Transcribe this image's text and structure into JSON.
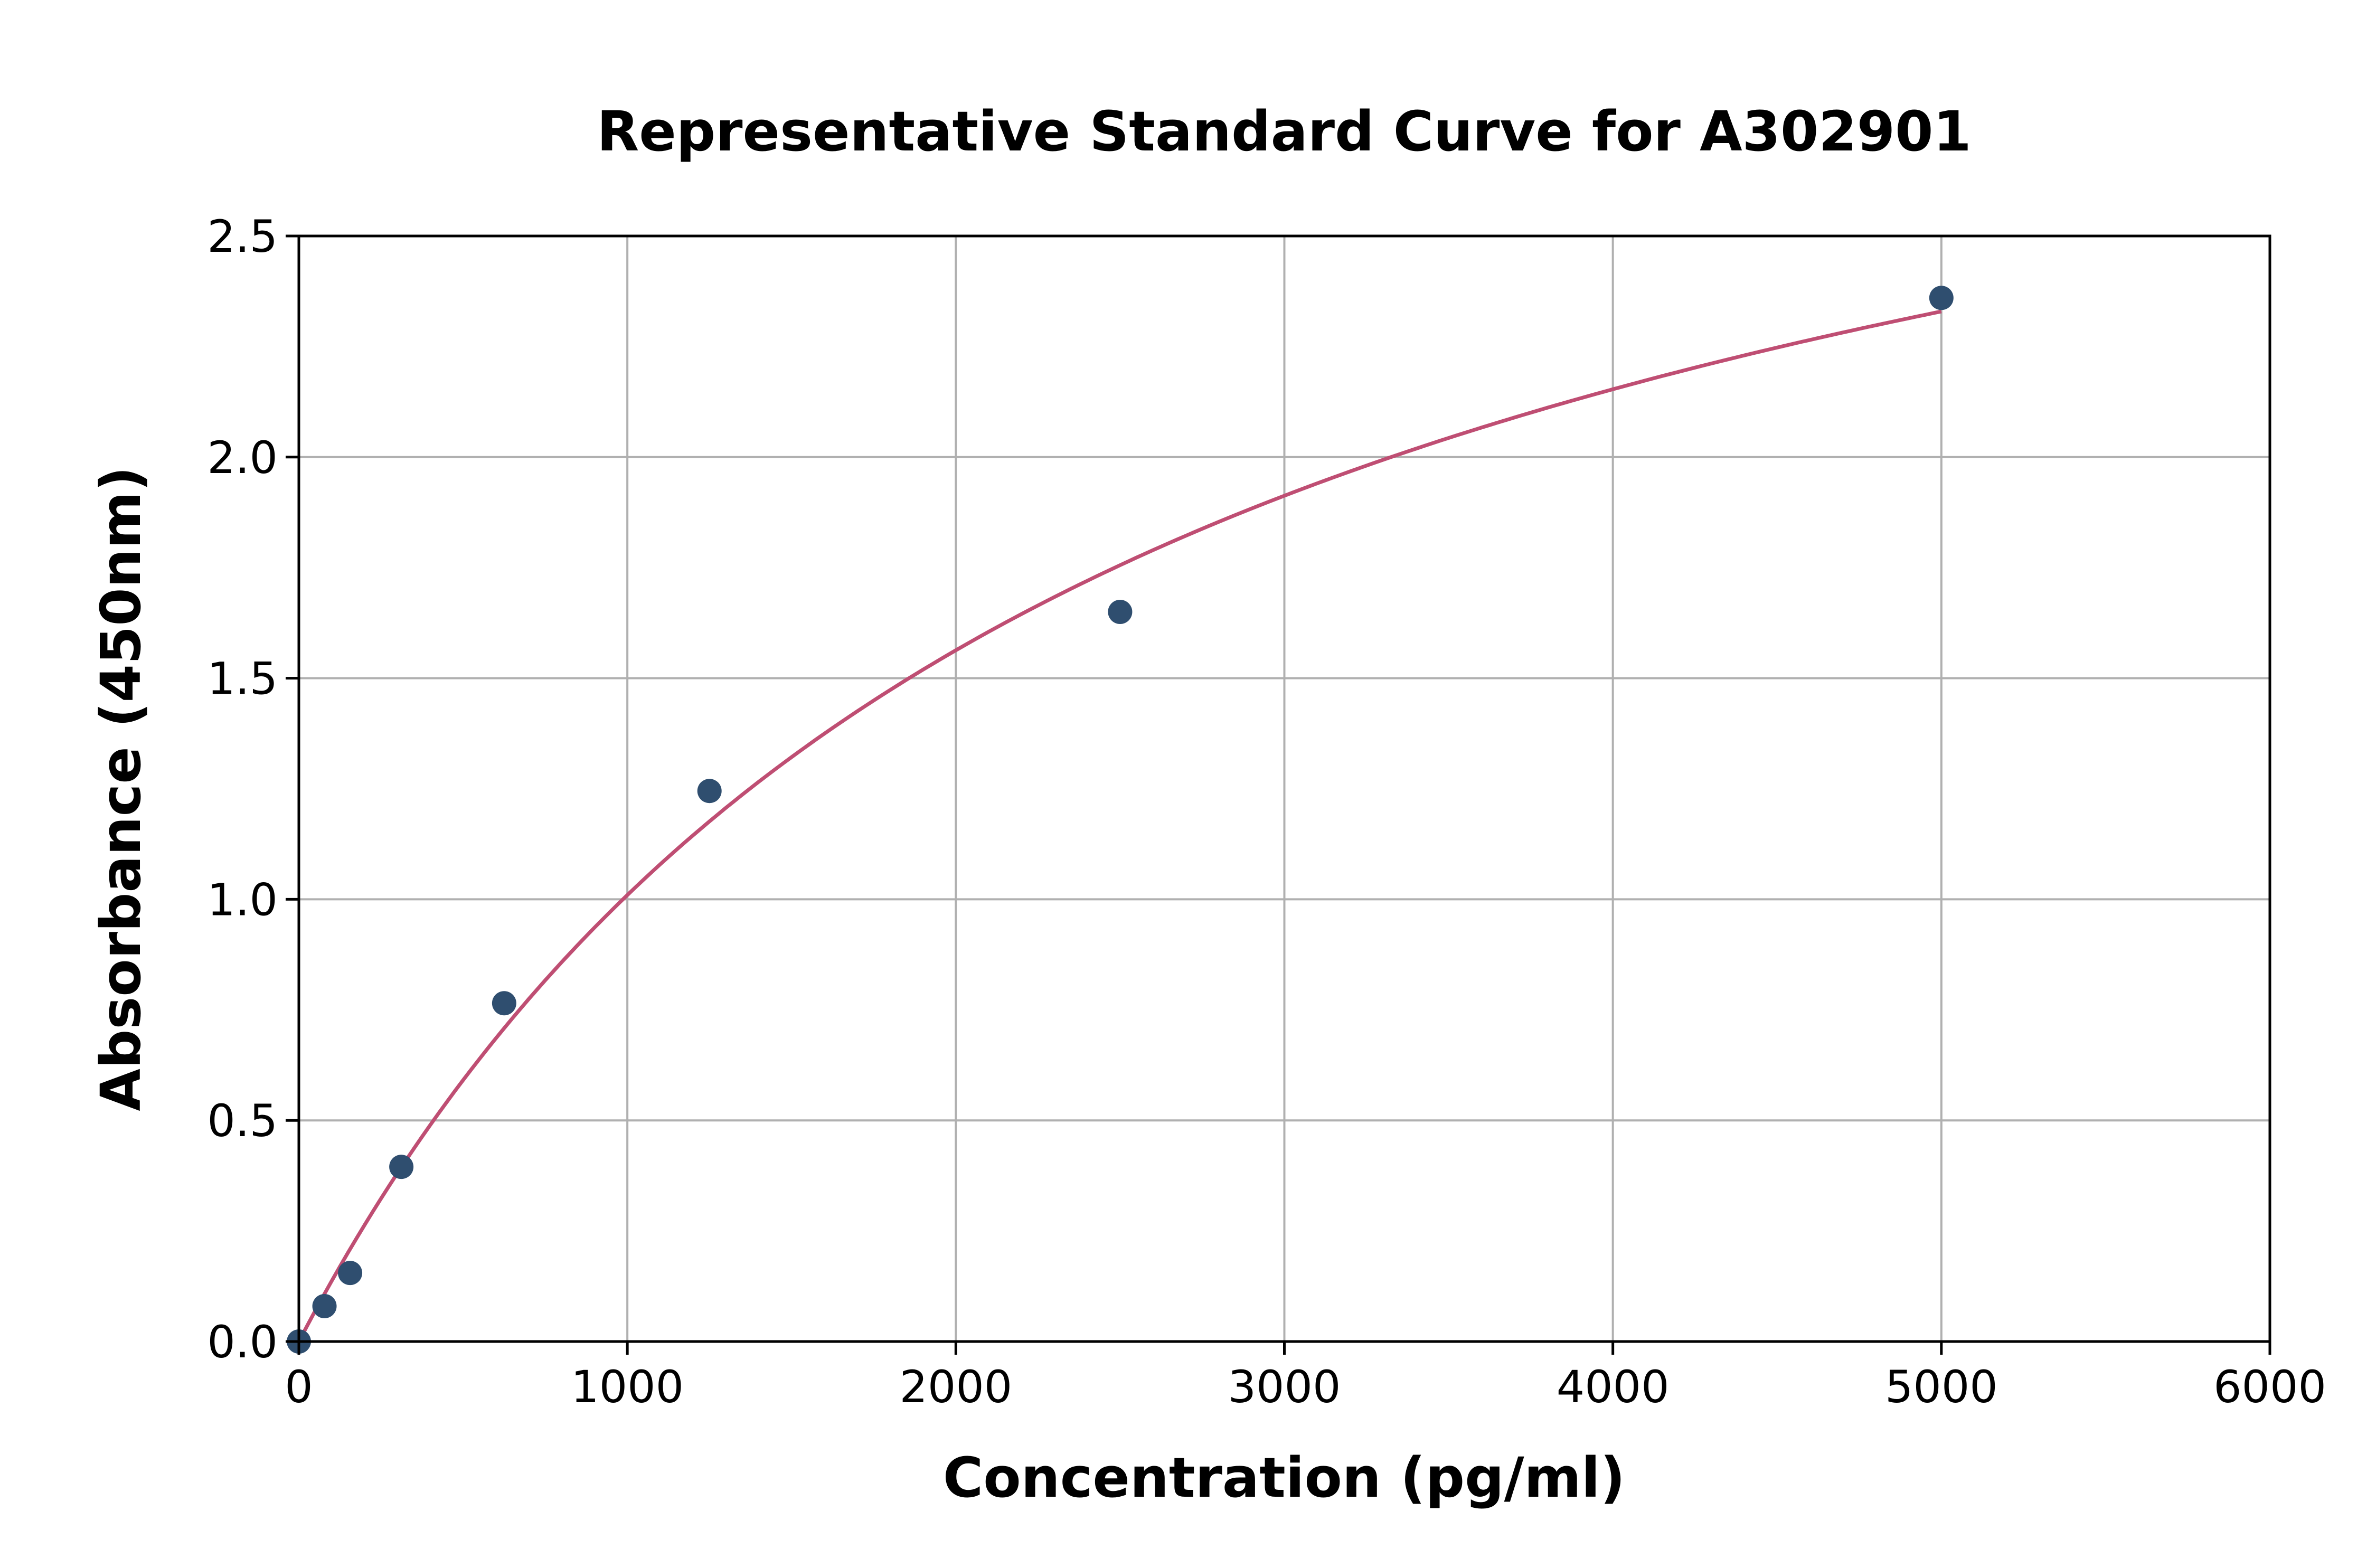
{
  "chart_data": {
    "type": "scatter",
    "title": "Representative Standard Curve for A302901",
    "xlabel": "Concentration (pg/ml)",
    "ylabel": "Absorbance (450nm)",
    "xlim": [
      0,
      6000
    ],
    "ylim": [
      0,
      2.5
    ],
    "xticks": [
      "0",
      "1000",
      "2000",
      "3000",
      "4000",
      "5000",
      "6000"
    ],
    "yticks": [
      "0.0",
      "0.5",
      "1.0",
      "1.5",
      "2.0",
      "2.5"
    ],
    "grid": true,
    "points": {
      "x": [
        0,
        78,
        156,
        312,
        625,
        1250,
        2500,
        5000
      ],
      "y": [
        0.0,
        0.08,
        0.155,
        0.395,
        0.765,
        1.245,
        1.65,
        2.36
      ]
    },
    "fit_curve": {
      "x_range": [
        0,
        5000
      ]
    },
    "colors": {
      "points": "#2f4e6f",
      "curve": "#bf4e73",
      "grid": "#b0b0b0"
    }
  }
}
